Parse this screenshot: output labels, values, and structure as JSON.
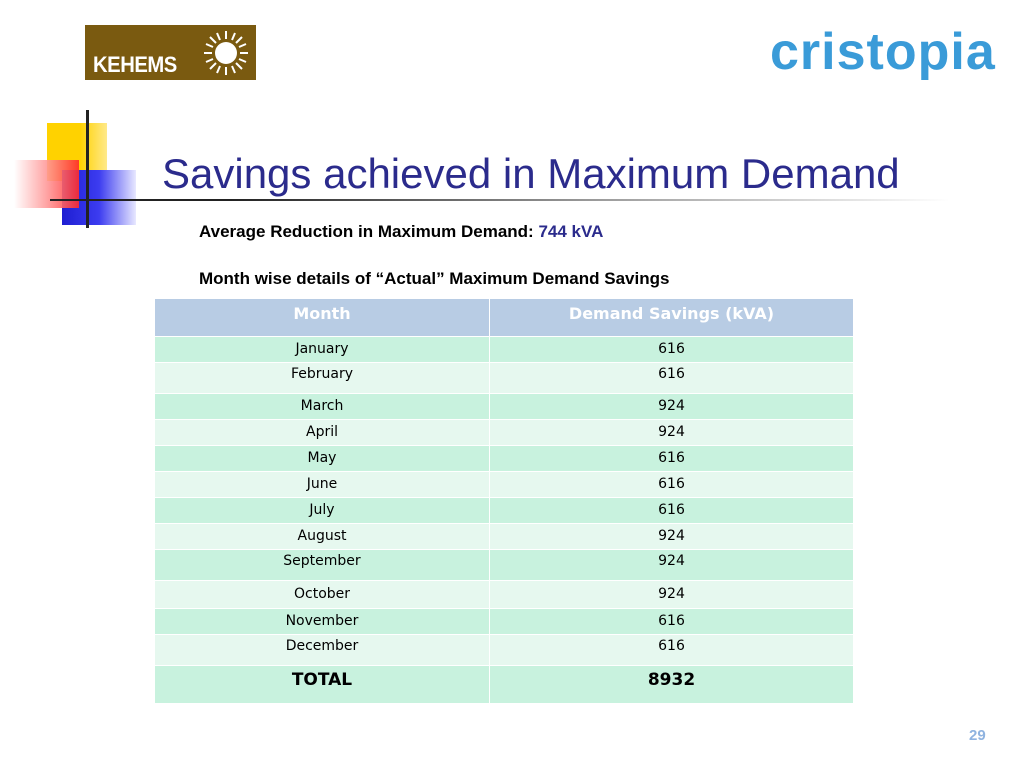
{
  "logos": {
    "kehems_text": "KEHEMS",
    "cristopia_text": "cristopia"
  },
  "title": "Savings achieved in Maximum Demand",
  "average": {
    "label": "Average Reduction in Maximum Demand:",
    "value": "744 kVA"
  },
  "details_heading": "Month wise details of “Actual” Maximum Demand Savings",
  "table": {
    "headers": [
      "Month",
      "Demand Savings (kVA)"
    ],
    "rows": [
      {
        "month": "January",
        "value": "616"
      },
      {
        "month": "February",
        "value": "616"
      },
      {
        "month": "March",
        "value": "924"
      },
      {
        "month": "April",
        "value": "924"
      },
      {
        "month": "May",
        "value": "616"
      },
      {
        "month": "June",
        "value": "616"
      },
      {
        "month": "July",
        "value": "616"
      },
      {
        "month": "August",
        "value": "924"
      },
      {
        "month": "September",
        "value": "924"
      },
      {
        "month": "October",
        "value": "924"
      },
      {
        "month": "November",
        "value": "616"
      },
      {
        "month": "December",
        "value": "616"
      }
    ],
    "total": {
      "label": "TOTAL",
      "value": "8932"
    }
  },
  "page_number": "29",
  "colors": {
    "title": "#2b2b8c",
    "header_bg": "#b8cce4",
    "row_dark": "#c8f2de",
    "row_light": "#e6f8ef",
    "kehems_bg": "#7a5a10",
    "cristopia": "#3a9bd8"
  }
}
